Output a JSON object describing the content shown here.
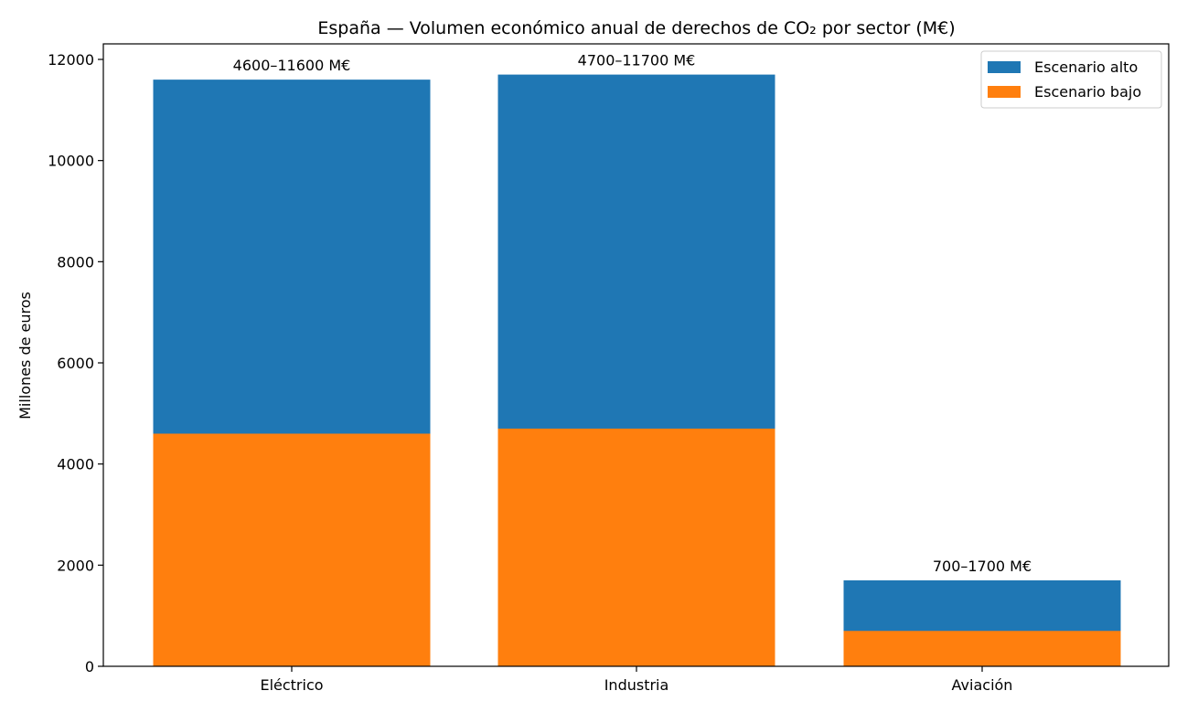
{
  "chart_data": {
    "type": "bar",
    "title": "España — Volumen económico anual de derechos de CO₂ por sector (M€)",
    "xlabel": "",
    "ylabel": "Millones de euros",
    "ylim": [
      0,
      12300
    ],
    "yticks": [
      0,
      2000,
      4000,
      6000,
      8000,
      10000,
      12000
    ],
    "ytick_labels": [
      "0",
      "2000",
      "4000",
      "6000",
      "8000",
      "10000",
      "12000"
    ],
    "categories": [
      "Eléctrico",
      "Industria",
      "Aviación"
    ],
    "series": [
      {
        "name": "Escenario alto",
        "color": "#1f77b4",
        "values": [
          11600,
          11700,
          1700
        ]
      },
      {
        "name": "Escenario bajo",
        "color": "#ff7f0e",
        "values": [
          4600,
          4700,
          700
        ]
      }
    ],
    "bar_labels": [
      "4600–11600 M€",
      "4700–11700 M€",
      "700–1700 M€"
    ],
    "legend": {
      "position": "top-right",
      "entries": [
        "Escenario alto",
        "Escenario bajo"
      ]
    },
    "grid": false
  }
}
